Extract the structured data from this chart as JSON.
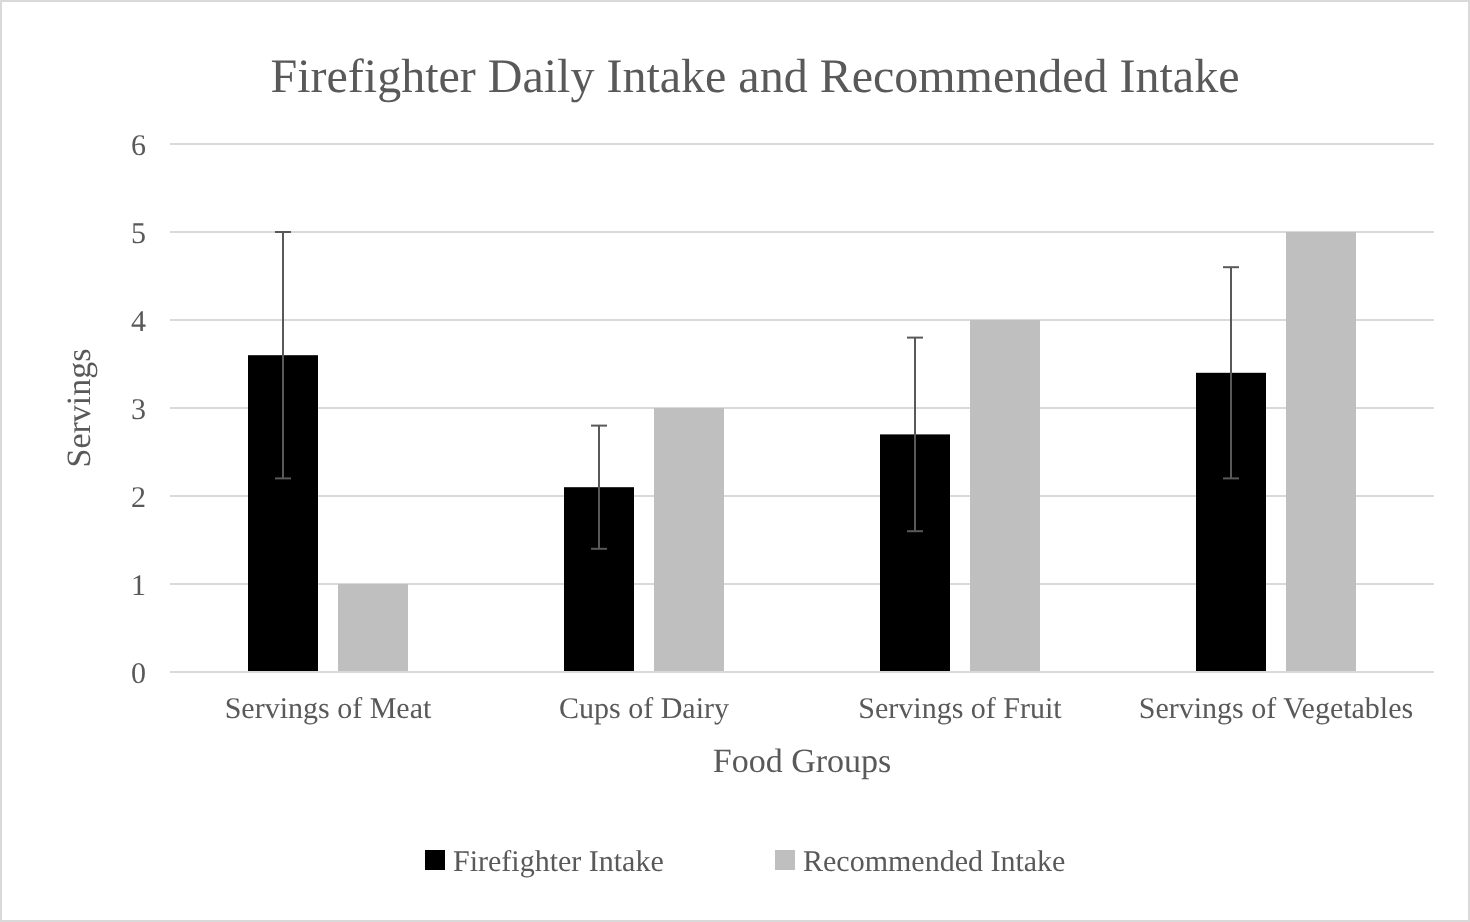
{
  "chart_data": {
    "type": "bar",
    "title": "Firefighter Daily Intake and Recommended Intake",
    "xlabel": "Food Groups",
    "ylabel": "Servings",
    "categories": [
      "Servings of Meat",
      "Cups of Dairy",
      "Servings of Fruit",
      "Servings of Vegetables"
    ],
    "series": [
      {
        "name": "Firefighter Intake",
        "color": "#000000",
        "values": [
          3.6,
          2.1,
          2.7,
          3.4
        ],
        "errors": [
          1.4,
          0.7,
          1.1,
          1.2
        ]
      },
      {
        "name": "Recommended Intake",
        "color": "#bfbfbf",
        "values": [
          1,
          3,
          4,
          5
        ]
      }
    ],
    "ylim": [
      0,
      6
    ],
    "yticks": [
      0,
      1,
      2,
      3,
      4,
      5,
      6
    ],
    "grid": "y",
    "legend": "bottom"
  }
}
